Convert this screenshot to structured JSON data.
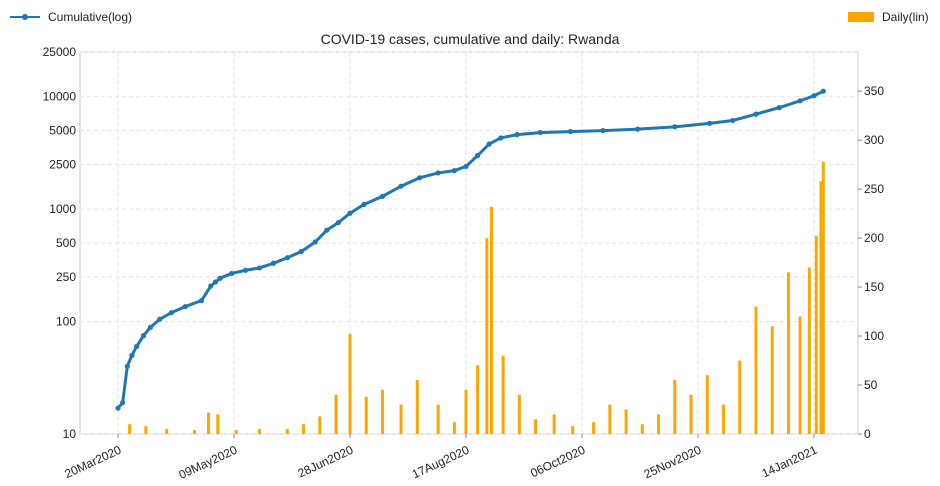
{
  "chart_data": {
    "type": "bar+line",
    "title": "COVID-19 cases, cumulative and daily: Rwanda",
    "legend": {
      "cumulative": "Cumulative(log)",
      "daily": "Daily(lin)"
    },
    "x_tick_labels": [
      "20Mar2020",
      "09May2020",
      "28Jun2020",
      "17Aug2020",
      "06Oct2020",
      "25Nov2020",
      "14Jan2021"
    ],
    "x_range": [
      "2020-03-20",
      "2021-01-14"
    ],
    "y_left": {
      "scale": "log",
      "ticks": [
        "10",
        "100",
        "250",
        "500",
        "1000",
        "2500",
        "5000",
        "10000",
        "25000"
      ],
      "range": [
        10,
        25000
      ]
    },
    "y_right": {
      "scale": "linear",
      "ticks": [
        "0",
        "50",
        "100",
        "150",
        "200",
        "250",
        "300",
        "350"
      ],
      "range": [
        0,
        390
      ]
    },
    "grid": true,
    "colors": {
      "cumulative": "#1f77b4",
      "daily": "#ffa500"
    },
    "series": [
      {
        "name": "Cumulative(log)",
        "axis": "left",
        "points": [
          [
            "2020-03-20",
            17
          ],
          [
            "2020-03-22",
            19
          ],
          [
            "2020-03-24",
            40
          ],
          [
            "2020-03-26",
            50
          ],
          [
            "2020-03-28",
            60
          ],
          [
            "2020-03-31",
            75
          ],
          [
            "2020-04-03",
            89
          ],
          [
            "2020-04-07",
            105
          ],
          [
            "2020-04-12",
            120
          ],
          [
            "2020-04-18",
            136
          ],
          [
            "2020-04-25",
            154
          ],
          [
            "2020-04-29",
            207
          ],
          [
            "2020-05-01",
            225
          ],
          [
            "2020-05-03",
            243
          ],
          [
            "2020-05-08",
            268
          ],
          [
            "2020-05-14",
            286
          ],
          [
            "2020-05-20",
            300
          ],
          [
            "2020-05-26",
            330
          ],
          [
            "2020-06-01",
            370
          ],
          [
            "2020-06-07",
            420
          ],
          [
            "2020-06-13",
            510
          ],
          [
            "2020-06-18",
            650
          ],
          [
            "2020-06-23",
            760
          ],
          [
            "2020-06-28",
            920
          ],
          [
            "2020-07-04",
            1100
          ],
          [
            "2020-07-12",
            1300
          ],
          [
            "2020-07-20",
            1600
          ],
          [
            "2020-07-28",
            1900
          ],
          [
            "2020-08-05",
            2100
          ],
          [
            "2020-08-12",
            2200
          ],
          [
            "2020-08-17",
            2400
          ],
          [
            "2020-08-22",
            3000
          ],
          [
            "2020-08-27",
            3800
          ],
          [
            "2020-09-01",
            4300
          ],
          [
            "2020-09-08",
            4600
          ],
          [
            "2020-09-18",
            4800
          ],
          [
            "2020-10-01",
            4900
          ],
          [
            "2020-10-15",
            5000
          ],
          [
            "2020-10-30",
            5150
          ],
          [
            "2020-11-15",
            5400
          ],
          [
            "2020-11-30",
            5800
          ],
          [
            "2020-12-10",
            6150
          ],
          [
            "2020-12-20",
            7000
          ],
          [
            "2020-12-30",
            8000
          ],
          [
            "2021-01-08",
            9200
          ],
          [
            "2021-01-14",
            10200
          ],
          [
            "2021-01-18",
            11200
          ]
        ]
      },
      {
        "name": "Daily(lin)",
        "axis": "right",
        "points": [
          [
            "2020-03-25",
            10
          ],
          [
            "2020-04-01",
            8
          ],
          [
            "2020-04-10",
            5
          ],
          [
            "2020-04-22",
            4
          ],
          [
            "2020-04-28",
            22
          ],
          [
            "2020-05-02",
            20
          ],
          [
            "2020-05-10",
            4
          ],
          [
            "2020-05-20",
            5
          ],
          [
            "2020-06-01",
            5
          ],
          [
            "2020-06-08",
            10
          ],
          [
            "2020-06-15",
            18
          ],
          [
            "2020-06-22",
            40
          ],
          [
            "2020-06-28",
            102
          ],
          [
            "2020-07-05",
            38
          ],
          [
            "2020-07-12",
            45
          ],
          [
            "2020-07-20",
            30
          ],
          [
            "2020-07-27",
            55
          ],
          [
            "2020-08-05",
            30
          ],
          [
            "2020-08-12",
            12
          ],
          [
            "2020-08-17",
            45
          ],
          [
            "2020-08-22",
            70
          ],
          [
            "2020-08-26",
            200
          ],
          [
            "2020-08-28",
            232
          ],
          [
            "2020-09-02",
            80
          ],
          [
            "2020-09-09",
            40
          ],
          [
            "2020-09-16",
            15
          ],
          [
            "2020-09-24",
            20
          ],
          [
            "2020-10-02",
            8
          ],
          [
            "2020-10-11",
            12
          ],
          [
            "2020-10-18",
            30
          ],
          [
            "2020-10-25",
            25
          ],
          [
            "2020-11-01",
            10
          ],
          [
            "2020-11-08",
            20
          ],
          [
            "2020-11-15",
            55
          ],
          [
            "2020-11-22",
            40
          ],
          [
            "2020-11-29",
            60
          ],
          [
            "2020-12-06",
            30
          ],
          [
            "2020-12-13",
            75
          ],
          [
            "2020-12-20",
            130
          ],
          [
            "2020-12-27",
            110
          ],
          [
            "2021-01-03",
            165
          ],
          [
            "2021-01-08",
            120
          ],
          [
            "2021-01-12",
            170
          ],
          [
            "2021-01-15",
            202
          ],
          [
            "2021-01-17",
            258
          ],
          [
            "2021-01-18",
            278
          ]
        ]
      }
    ]
  }
}
